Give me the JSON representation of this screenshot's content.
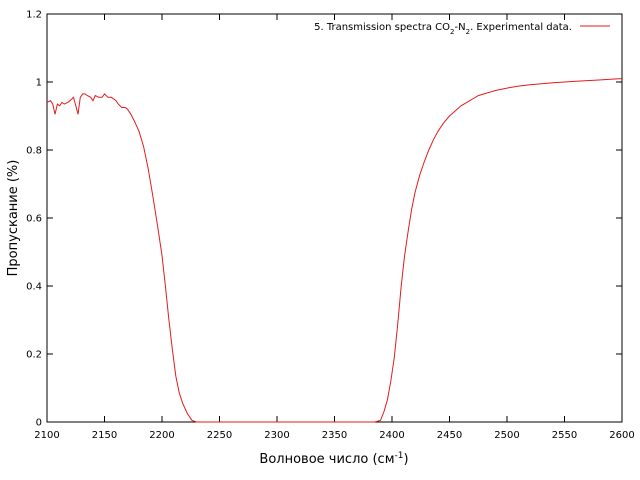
{
  "chart_data": {
    "type": "line",
    "title": "",
    "xlabel": "Волновое число (см",
    "xlabel_sup": "-1",
    "xlabel_tail": ")",
    "ylabel": "Пропускание (%)",
    "xlim": [
      2100,
      2600
    ],
    "ylim": [
      0,
      1.2
    ],
    "x_ticks": [
      2100,
      2150,
      2200,
      2250,
      2300,
      2350,
      2400,
      2450,
      2500,
      2550,
      2600
    ],
    "x_tick_labels": [
      "2100",
      "2150",
      "2200",
      "2250",
      "2300",
      "2350",
      "2400",
      "2450",
      "2500",
      "2550",
      "2600"
    ],
    "y_ticks": [
      0,
      0.2,
      0.4,
      0.6,
      0.8,
      1,
      1.2
    ],
    "y_tick_labels": [
      "0",
      "0.2",
      "0.4",
      "0.6",
      "0.8",
      "1",
      "1.2"
    ],
    "grid": false,
    "legend": {
      "placement": "top-right",
      "text_main": "5. Transmission spectra CO",
      "sub1": "2",
      "text_mid": "-N",
      "sub2": "2",
      "text_end": ". Experimental data."
    },
    "series": [
      {
        "color": "#e41a1c",
        "x": [
          2100,
          2103,
          2105,
          2107,
          2109,
          2111,
          2113,
          2115,
          2118,
          2120,
          2123,
          2125,
          2127,
          2129,
          2131,
          2133,
          2135,
          2138,
          2140,
          2142,
          2145,
          2148,
          2150,
          2153,
          2156,
          2158,
          2160,
          2162,
          2165,
          2168,
          2170,
          2173,
          2176,
          2180,
          2184,
          2188,
          2192,
          2196,
          2200,
          2203,
          2206,
          2209,
          2212,
          2215,
          2218,
          2222,
          2226,
          2230,
          2234,
          2240,
          2260,
          2300,
          2340,
          2370,
          2385,
          2390,
          2393,
          2396,
          2399,
          2402,
          2405,
          2408,
          2411,
          2414,
          2417,
          2420,
          2424,
          2428,
          2432,
          2436,
          2440,
          2445,
          2450,
          2455,
          2460,
          2465,
          2470,
          2475,
          2480,
          2485,
          2490,
          2500,
          2510,
          2520,
          2530,
          2540,
          2550,
          2560,
          2570,
          2580,
          2590,
          2600
        ],
        "y": [
          0.94,
          0.945,
          0.935,
          0.905,
          0.935,
          0.93,
          0.94,
          0.935,
          0.94,
          0.945,
          0.955,
          0.93,
          0.905,
          0.955,
          0.965,
          0.965,
          0.96,
          0.955,
          0.945,
          0.96,
          0.955,
          0.955,
          0.965,
          0.955,
          0.955,
          0.95,
          0.945,
          0.935,
          0.925,
          0.925,
          0.92,
          0.905,
          0.885,
          0.855,
          0.81,
          0.745,
          0.665,
          0.58,
          0.49,
          0.4,
          0.3,
          0.215,
          0.135,
          0.085,
          0.055,
          0.025,
          0.005,
          0,
          0,
          0,
          0,
          0,
          0,
          0,
          0,
          0.005,
          0.03,
          0.065,
          0.12,
          0.19,
          0.29,
          0.4,
          0.49,
          0.56,
          0.625,
          0.675,
          0.725,
          0.765,
          0.8,
          0.83,
          0.855,
          0.88,
          0.9,
          0.915,
          0.93,
          0.94,
          0.95,
          0.96,
          0.965,
          0.97,
          0.975,
          0.982,
          0.988,
          0.992,
          0.995,
          0.998,
          1.0,
          1.002,
          1.004,
          1.006,
          1.008,
          1.01
        ]
      }
    ]
  }
}
